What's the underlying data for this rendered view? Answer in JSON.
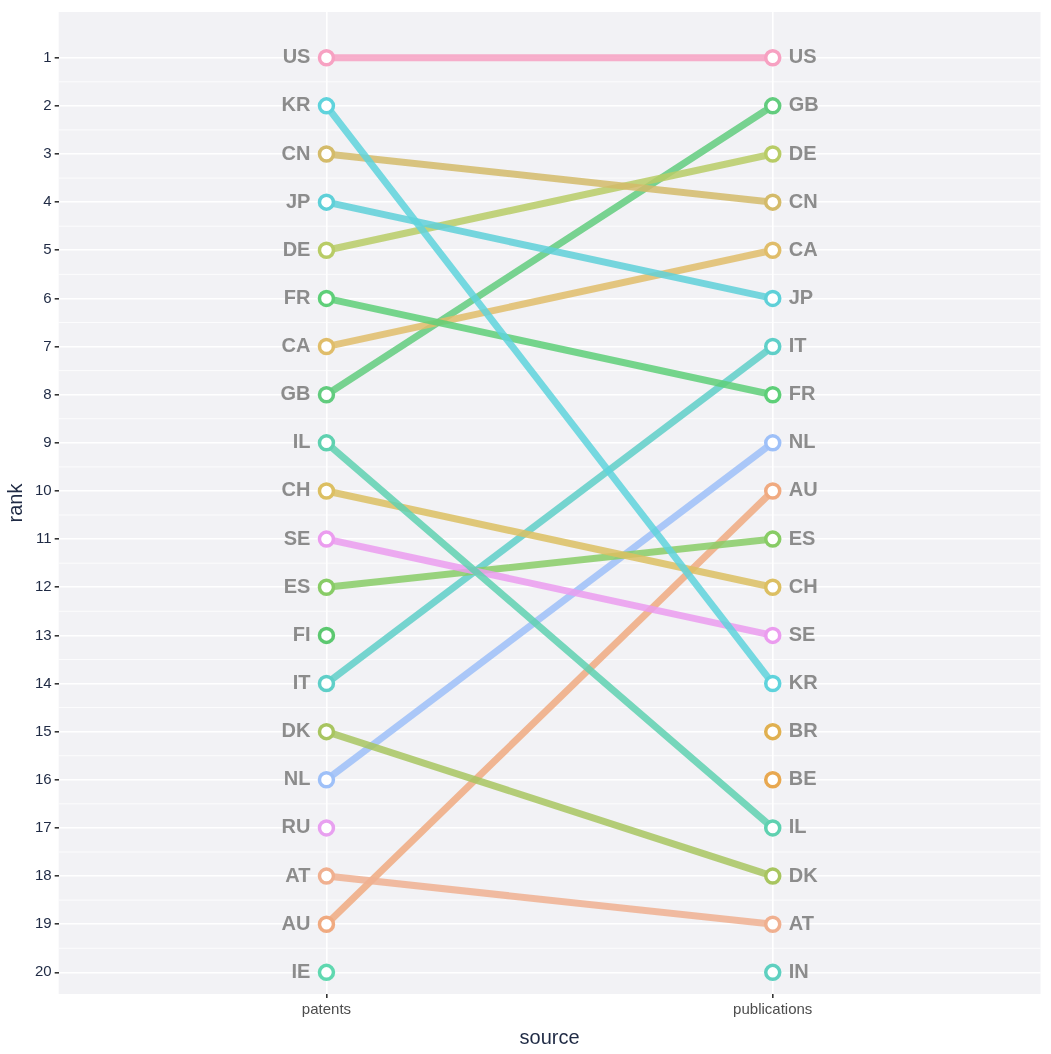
{
  "chart_data": {
    "type": "line",
    "xlabel": "source",
    "ylabel": "rank",
    "categories": [
      "patents",
      "publications"
    ],
    "ylim": [
      20.45,
      0.05
    ],
    "yticks": [
      1,
      2,
      3,
      4,
      5,
      6,
      7,
      8,
      9,
      10,
      11,
      12,
      13,
      14,
      15,
      16,
      17,
      18,
      19,
      20
    ],
    "grid": true,
    "legend": false,
    "marker": "circle",
    "line_style": "solid",
    "series": [
      {
        "name": "US",
        "color": "#f7a1c2",
        "values": [
          1,
          1
        ]
      },
      {
        "name": "KR",
        "color": "#5fd3dc",
        "values": [
          2,
          14
        ]
      },
      {
        "name": "CN",
        "color": "#d4bb6a",
        "values": [
          3,
          4
        ]
      },
      {
        "name": "JP",
        "color": "#5fd0d8",
        "values": [
          4,
          6
        ]
      },
      {
        "name": "DE",
        "color": "#b8cc66",
        "values": [
          5,
          3
        ]
      },
      {
        "name": "FR",
        "color": "#5ecf78",
        "values": [
          6,
          8
        ]
      },
      {
        "name": "CA",
        "color": "#e0bd6a",
        "values": [
          7,
          5
        ]
      },
      {
        "name": "GB",
        "color": "#62cc7e",
        "values": [
          8,
          2
        ]
      },
      {
        "name": "IL",
        "color": "#5fd1b0",
        "values": [
          9,
          17
        ]
      },
      {
        "name": "CH",
        "color": "#dcbf62",
        "values": [
          10,
          12
        ]
      },
      {
        "name": "SE",
        "color": "#eb9cef",
        "values": [
          11,
          13
        ]
      },
      {
        "name": "ES",
        "color": "#88cc66",
        "values": [
          12,
          11
        ]
      },
      {
        "name": "FI",
        "color": "#5cc870",
        "values": [
          13,
          null
        ]
      },
      {
        "name": "IT",
        "color": "#5fcfc8",
        "values": [
          14,
          7
        ]
      },
      {
        "name": "DK",
        "color": "#a8c560",
        "values": [
          15,
          18
        ]
      },
      {
        "name": "NL",
        "color": "#9ec0f8",
        "values": [
          16,
          9
        ]
      },
      {
        "name": "RU",
        "color": "#e8a0f0",
        "values": [
          17,
          null
        ]
      },
      {
        "name": "AT",
        "color": "#f0b090",
        "values": [
          18,
          19
        ]
      },
      {
        "name": "AU",
        "color": "#f0aa80",
        "values": [
          19,
          10
        ]
      },
      {
        "name": "IE",
        "color": "#60d8b0",
        "values": [
          20,
          null
        ]
      },
      {
        "name": "BR",
        "color": "#e0b050",
        "values": [
          null,
          15
        ]
      },
      {
        "name": "BE",
        "color": "#e8a850",
        "values": [
          null,
          16
        ]
      },
      {
        "name": "IN",
        "color": "#5fd0c0",
        "values": [
          null,
          20
        ]
      }
    ]
  }
}
